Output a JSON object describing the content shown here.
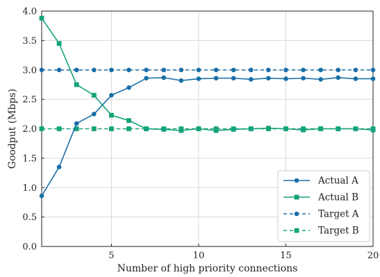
{
  "chart_data": {
    "type": "line",
    "xlabel": "Number of high priority connections",
    "ylabel": "Goodput (Mbps)",
    "xlim": [
      1,
      20
    ],
    "ylim": [
      0,
      4.0
    ],
    "x_ticks": [
      5,
      10,
      15,
      20
    ],
    "y_ticks": [
      "0.0",
      "0.5",
      "1.0",
      "1.5",
      "2.0",
      "2.5",
      "3.0",
      "3.5",
      "4.0"
    ],
    "grid": true,
    "legend_position": "bottom-right",
    "x": [
      1,
      2,
      3,
      4,
      5,
      6,
      7,
      8,
      9,
      10,
      11,
      12,
      13,
      14,
      15,
      16,
      17,
      18,
      19,
      20
    ],
    "series": [
      {
        "name": "Actual A",
        "color": "#1a6fa8",
        "line_style": "solid",
        "marker": "circle",
        "values": [
          0.86,
          1.35,
          2.09,
          2.25,
          2.57,
          2.7,
          2.86,
          2.87,
          2.82,
          2.85,
          2.86,
          2.86,
          2.84,
          2.86,
          2.85,
          2.86,
          2.84,
          2.87,
          2.85,
          2.85
        ]
      },
      {
        "name": "Actual B",
        "color": "#14a37a",
        "line_style": "solid",
        "marker": "square",
        "values": [
          3.88,
          3.45,
          2.75,
          2.57,
          2.23,
          2.14,
          2.0,
          1.99,
          1.97,
          2.0,
          1.97,
          1.99,
          2.0,
          2.01,
          2.0,
          1.98,
          2.0,
          2.0,
          2.0,
          1.98
        ]
      },
      {
        "name": "Target A",
        "color": "#1a6fa8",
        "line_style": "dashed",
        "marker": "circle",
        "values": [
          3.0,
          3.0,
          3.0,
          3.0,
          3.0,
          3.0,
          3.0,
          3.0,
          3.0,
          3.0,
          3.0,
          3.0,
          3.0,
          3.0,
          3.0,
          3.0,
          3.0,
          3.0,
          3.0,
          3.0
        ]
      },
      {
        "name": "Target B",
        "color": "#14a37a",
        "line_style": "dashed",
        "marker": "square",
        "values": [
          2.0,
          2.0,
          2.0,
          2.0,
          2.0,
          2.0,
          2.0,
          2.0,
          2.0,
          2.0,
          2.0,
          2.0,
          2.0,
          2.0,
          2.0,
          2.0,
          2.0,
          2.0,
          2.0,
          2.0
        ]
      }
    ]
  }
}
